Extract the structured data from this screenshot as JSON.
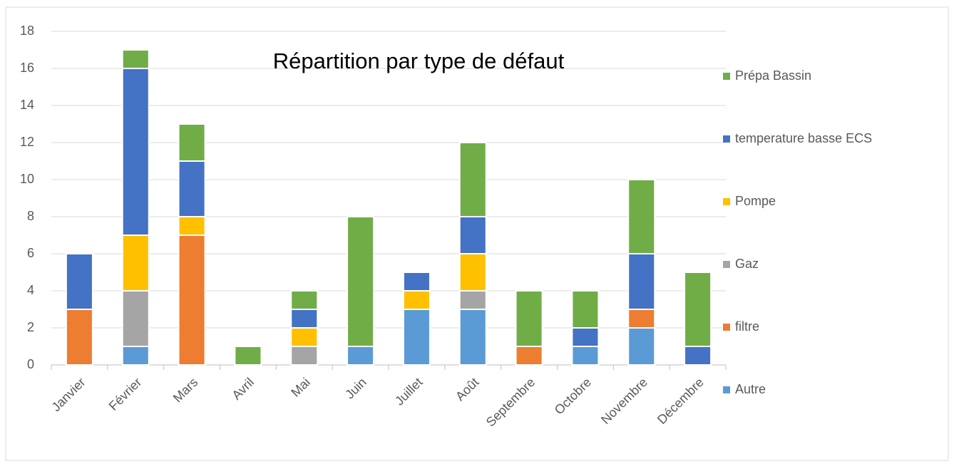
{
  "chart_data": {
    "type": "stacked_bar",
    "title": "Répartition par type de défaut",
    "categories": [
      "Janvier",
      "Février",
      "Mars",
      "Avril",
      "Mai",
      "Juin",
      "Juillet",
      "Août",
      "Septembre",
      "Octobre",
      "Novembre",
      "Décembre"
    ],
    "series": [
      {
        "name": "Autre",
        "color": "#5b9bd5",
        "values": [
          0,
          1,
          0,
          0,
          0,
          1,
          3,
          3,
          0,
          1,
          2,
          0
        ]
      },
      {
        "name": "filtre",
        "color": "#ed7d31",
        "values": [
          3,
          0,
          7,
          0,
          0,
          0,
          0,
          0,
          1,
          0,
          1,
          0
        ]
      },
      {
        "name": "Gaz",
        "color": "#a5a5a5",
        "values": [
          0,
          3,
          0,
          0,
          1,
          0,
          0,
          1,
          0,
          0,
          0,
          0
        ]
      },
      {
        "name": "Pompe",
        "color": "#ffc000",
        "values": [
          0,
          3,
          1,
          0,
          1,
          0,
          1,
          2,
          0,
          0,
          0,
          0
        ]
      },
      {
        "name": "temperature basse ECS",
        "color": "#4472c4",
        "values": [
          3,
          9,
          3,
          0,
          1,
          0,
          1,
          2,
          0,
          1,
          3,
          1
        ]
      },
      {
        "name": "Prépa Bassin",
        "color": "#70ad47",
        "values": [
          0,
          1,
          2,
          1,
          1,
          7,
          0,
          4,
          3,
          2,
          4,
          4
        ]
      }
    ],
    "ylim": [
      0,
      18
    ],
    "yticks": [
      0,
      2,
      4,
      6,
      8,
      10,
      12,
      14,
      16,
      18
    ],
    "grid": true,
    "legend": "right"
  }
}
